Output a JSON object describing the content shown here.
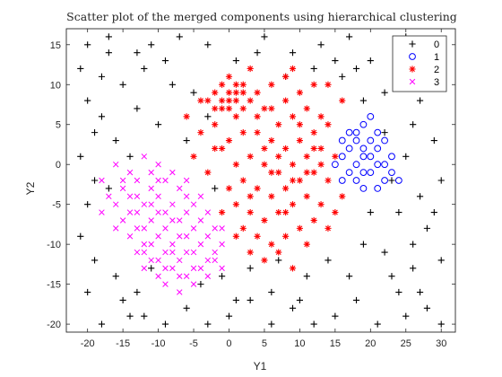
{
  "chart_data": {
    "type": "scatter",
    "title": "Scatter plot of the merged components using hierarchical clustering",
    "xlabel": "Y1",
    "ylabel": "Y2",
    "xlim": [
      -23,
      32
    ],
    "ylim": [
      -21,
      17
    ],
    "xticks": [
      -20,
      -15,
      -10,
      -5,
      0,
      5,
      10,
      15,
      20,
      25,
      30
    ],
    "yticks": [
      -20,
      -15,
      -10,
      -5,
      0,
      5,
      10,
      15
    ],
    "grid": false,
    "legend_position": "top-right",
    "series": [
      {
        "name": "0",
        "marker": "plus",
        "color": "#000000",
        "points": [
          [
            -20,
            15
          ],
          [
            -17,
            16
          ],
          [
            -13,
            14
          ],
          [
            -9,
            13
          ],
          [
            -7,
            16
          ],
          [
            -3,
            15
          ],
          [
            1,
            13
          ],
          [
            5,
            16
          ],
          [
            9,
            14
          ],
          [
            13,
            15
          ],
          [
            17,
            16
          ],
          [
            25,
            16
          ],
          [
            28,
            13
          ],
          [
            30,
            10
          ],
          [
            27,
            8
          ],
          [
            24,
            12
          ],
          [
            20,
            13
          ],
          [
            22,
            9
          ],
          [
            26,
            5
          ],
          [
            29,
            3
          ],
          [
            30,
            -2
          ],
          [
            27,
            -4
          ],
          [
            24,
            -6
          ],
          [
            28,
            -8
          ],
          [
            30,
            -12
          ],
          [
            26,
            -13
          ],
          [
            24,
            -16
          ],
          [
            28,
            -18
          ],
          [
            30,
            -20
          ],
          [
            25,
            -19
          ],
          [
            21,
            -20
          ],
          [
            18,
            -17
          ],
          [
            15,
            -19
          ],
          [
            12,
            -20
          ],
          [
            9,
            -18
          ],
          [
            6,
            -20
          ],
          [
            3,
            -17
          ],
          [
            0,
            -19
          ],
          [
            -3,
            -20
          ],
          [
            -6,
            -18
          ],
          [
            -9,
            -20
          ],
          [
            -12,
            -19
          ],
          [
            -15,
            -17
          ],
          [
            -18,
            -20
          ],
          [
            -20,
            -16
          ],
          [
            -19,
            -12
          ],
          [
            -21,
            -9
          ],
          [
            -20,
            -5
          ],
          [
            -19,
            -2
          ],
          [
            -21,
            1
          ],
          [
            -19,
            4
          ],
          [
            -20,
            8
          ],
          [
            -18,
            11
          ],
          [
            -15,
            10
          ],
          [
            -12,
            12
          ],
          [
            -8,
            10
          ],
          [
            -5,
            9
          ],
          [
            -13,
            7
          ],
          [
            -10,
            5
          ],
          [
            -16,
            3
          ],
          [
            -14,
            1
          ],
          [
            -17,
            -3
          ],
          [
            -6,
            3
          ],
          [
            -3,
            6
          ],
          [
            -2,
            -3
          ],
          [
            -16,
            -14
          ],
          [
            -13,
            -16
          ],
          [
            -11,
            -13
          ],
          [
            -1,
            -14
          ],
          [
            3,
            -13
          ],
          [
            7,
            -12
          ],
          [
            11,
            -14
          ],
          [
            14,
            -12
          ],
          [
            17,
            -14
          ],
          [
            19,
            -10
          ],
          [
            22,
            -11
          ],
          [
            20,
            -6
          ],
          [
            23,
            -2
          ],
          [
            25,
            1
          ],
          [
            22,
            4
          ],
          [
            19,
            8
          ],
          [
            16,
            11
          ],
          [
            12,
            12
          ],
          [
            8,
            11
          ],
          [
            6,
            -16
          ],
          [
            10,
            -17
          ],
          [
            1,
            -17
          ],
          [
            -4,
            -15
          ],
          [
            -14,
            -19
          ],
          [
            23,
            -14
          ],
          [
            27,
            -16
          ],
          [
            29,
            -6
          ],
          [
            26,
            -10
          ],
          [
            -18,
            6
          ],
          [
            -21,
            12
          ],
          [
            -17,
            14
          ],
          [
            -11,
            15
          ],
          [
            4,
            14
          ],
          [
            15,
            13
          ],
          [
            18,
            12
          ]
        ]
      },
      {
        "name": "1",
        "marker": "circle",
        "color": "#0000ff",
        "points": [
          [
            16,
            3
          ],
          [
            17,
            2
          ],
          [
            18,
            4
          ],
          [
            19,
            5
          ],
          [
            20,
            3
          ],
          [
            21,
            2
          ],
          [
            19,
            1
          ],
          [
            18,
            0
          ],
          [
            20,
            -1
          ],
          [
            22,
            0
          ],
          [
            23,
            1
          ],
          [
            17,
            -1
          ],
          [
            18,
            -2
          ],
          [
            19,
            -3
          ],
          [
            21,
            -3
          ],
          [
            22,
            -2
          ],
          [
            24,
            -2
          ],
          [
            16,
            -2
          ],
          [
            15,
            0
          ],
          [
            17,
            4
          ],
          [
            20,
            6
          ],
          [
            21,
            4
          ],
          [
            18,
            3
          ],
          [
            19,
            2
          ],
          [
            22,
            3
          ],
          [
            20,
            1
          ],
          [
            23,
            -1
          ],
          [
            21,
            0
          ],
          [
            19,
            -1
          ],
          [
            16,
            1
          ]
        ]
      },
      {
        "name": "2",
        "marker": "star",
        "color": "#ff0000",
        "points": [
          [
            -1,
            8
          ],
          [
            0,
            9
          ],
          [
            1,
            10
          ],
          [
            -1,
            7
          ],
          [
            0,
            7
          ],
          [
            1,
            8
          ],
          [
            2,
            9
          ],
          [
            -2,
            9
          ],
          [
            0,
            11
          ],
          [
            1,
            6
          ],
          [
            2,
            7
          ],
          [
            -1,
            10
          ],
          [
            3,
            8
          ],
          [
            -3,
            8
          ],
          [
            0,
            8
          ],
          [
            1,
            9
          ],
          [
            -2,
            7
          ],
          [
            2,
            10
          ],
          [
            4,
            9
          ],
          [
            6,
            10
          ],
          [
            8,
            11
          ],
          [
            10,
            9
          ],
          [
            12,
            10
          ],
          [
            5,
            7
          ],
          [
            7,
            5
          ],
          [
            9,
            6
          ],
          [
            11,
            7
          ],
          [
            13,
            6
          ],
          [
            4,
            4
          ],
          [
            6,
            3
          ],
          [
            8,
            2
          ],
          [
            10,
            3
          ],
          [
            12,
            4
          ],
          [
            14,
            5
          ],
          [
            3,
            1
          ],
          [
            5,
            0
          ],
          [
            7,
            -1
          ],
          [
            9,
            0
          ],
          [
            11,
            1
          ],
          [
            13,
            2
          ],
          [
            15,
            1
          ],
          [
            2,
            -2
          ],
          [
            4,
            -3
          ],
          [
            6,
            -4
          ],
          [
            8,
            -3
          ],
          [
            10,
            -2
          ],
          [
            12,
            -1
          ],
          [
            14,
            -2
          ],
          [
            1,
            -5
          ],
          [
            3,
            -6
          ],
          [
            5,
            -7
          ],
          [
            7,
            -6
          ],
          [
            9,
            -5
          ],
          [
            11,
            -4
          ],
          [
            13,
            -5
          ],
          [
            0,
            -3
          ],
          [
            2,
            -8
          ],
          [
            4,
            -9
          ],
          [
            6,
            -10
          ],
          [
            8,
            -9
          ],
          [
            10,
            -8
          ],
          [
            12,
            -7
          ],
          [
            -1,
            -6
          ],
          [
            1,
            -9
          ],
          [
            3,
            -11
          ],
          [
            5,
            -12
          ],
          [
            7,
            -11
          ],
          [
            9,
            -13
          ],
          [
            -4,
            4
          ],
          [
            -2,
            2
          ],
          [
            -5,
            1
          ],
          [
            -3,
            -1
          ],
          [
            -6,
            6
          ],
          [
            -4,
            8
          ],
          [
            15,
            -6
          ],
          [
            16,
            -4
          ],
          [
            14,
            -8
          ],
          [
            11,
            -10
          ],
          [
            16,
            8
          ],
          [
            14,
            10
          ],
          [
            9,
            12
          ],
          [
            3,
            12
          ],
          [
            -2,
            5
          ],
          [
            0,
            3
          ],
          [
            2,
            4
          ],
          [
            4,
            6
          ],
          [
            6,
            7
          ],
          [
            8,
            8
          ],
          [
            10,
            5
          ],
          [
            12,
            2
          ],
          [
            6,
            -1
          ],
          [
            8,
            -6
          ],
          [
            3,
            -4
          ],
          [
            1,
            0
          ],
          [
            -1,
            2
          ],
          [
            5,
            2
          ],
          [
            7,
            1
          ],
          [
            9,
            -2
          ],
          [
            11,
            -1
          ],
          [
            13,
            0
          ]
        ]
      },
      {
        "name": "3",
        "marker": "x",
        "color": "#ff00ff",
        "points": [
          [
            -18,
            -2
          ],
          [
            -16,
            0
          ],
          [
            -14,
            -1
          ],
          [
            -12,
            1
          ],
          [
            -10,
            0
          ],
          [
            -15,
            -3
          ],
          [
            -13,
            -4
          ],
          [
            -11,
            -3
          ],
          [
            -9,
            -2
          ],
          [
            -7,
            -3
          ],
          [
            -16,
            -5
          ],
          [
            -14,
            -6
          ],
          [
            -12,
            -5
          ],
          [
            -10,
            -6
          ],
          [
            -8,
            -5
          ],
          [
            -6,
            -6
          ],
          [
            -15,
            -7
          ],
          [
            -13,
            -8
          ],
          [
            -11,
            -7
          ],
          [
            -9,
            -8
          ],
          [
            -7,
            -7
          ],
          [
            -5,
            -8
          ],
          [
            -14,
            -9
          ],
          [
            -12,
            -10
          ],
          [
            -10,
            -9
          ],
          [
            -8,
            -10
          ],
          [
            -6,
            -9
          ],
          [
            -4,
            -10
          ],
          [
            -13,
            -11
          ],
          [
            -11,
            -12
          ],
          [
            -9,
            -11
          ],
          [
            -7,
            -12
          ],
          [
            -5,
            -11
          ],
          [
            -3,
            -12
          ],
          [
            -12,
            -13
          ],
          [
            -10,
            -14
          ],
          [
            -8,
            -13
          ],
          [
            -6,
            -14
          ],
          [
            -4,
            -13
          ],
          [
            -2,
            -12
          ],
          [
            -9,
            -15
          ],
          [
            -7,
            -16
          ],
          [
            -5,
            -15
          ],
          [
            -3,
            -14
          ],
          [
            -1,
            -13
          ],
          [
            -17,
            -4
          ],
          [
            -18,
            -6
          ],
          [
            -16,
            -8
          ],
          [
            -11,
            -1
          ],
          [
            -8,
            -1
          ],
          [
            -6,
            -2
          ],
          [
            -4,
            -4
          ],
          [
            -3,
            -6
          ],
          [
            -2,
            -8
          ],
          [
            -1,
            -10
          ],
          [
            -10,
            -4
          ],
          [
            -12,
            -8
          ],
          [
            -9,
            -6
          ],
          [
            -7,
            -9
          ],
          [
            -5,
            -13
          ],
          [
            -8,
            -11
          ],
          [
            -11,
            -10
          ],
          [
            -13,
            -6
          ],
          [
            -15,
            -2
          ],
          [
            -6,
            -4
          ],
          [
            -4,
            -7
          ],
          [
            -2,
            -11
          ],
          [
            -1,
            -8
          ],
          [
            -9,
            -13
          ],
          [
            -7,
            -14
          ],
          [
            -12,
            -11
          ],
          [
            -14,
            -4
          ],
          [
            -10,
            -2
          ],
          [
            -8,
            -7
          ],
          [
            -6,
            -11
          ],
          [
            -3,
            -9
          ],
          [
            -5,
            -5
          ],
          [
            -11,
            -5
          ],
          [
            -13,
            -2
          ],
          [
            -10,
            -12
          ]
        ]
      }
    ]
  }
}
